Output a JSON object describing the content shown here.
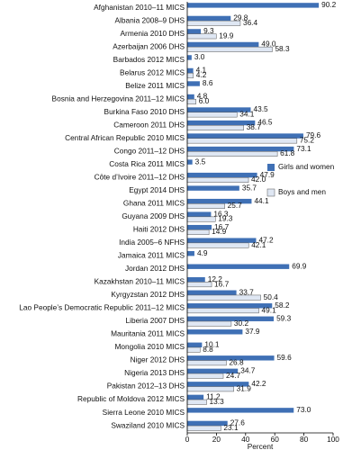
{
  "chart_data": {
    "type": "hbar",
    "xlabel": "Percent",
    "categories": [
      "Afghanistan 2010–11 MICS",
      "Albania 2008–9 DHS",
      "Armenia 2010 DHS",
      "Azerbaijan 2006 DHS",
      "Barbados 2012 MICS",
      "Belarus 2012 MICS",
      "Belize 2011 MICS",
      "Bosnia and Herzegovina 2011–12 MICS",
      "Burkina Faso 2010 DHS",
      "Cameroon 2011 DHS",
      "Central African Republic 2010 MICS",
      "Congo 2011–12 DHS",
      "Costa Rica 2011 MICS",
      "Côte d’Ivoire 2011–12 DHS",
      "Egypt 2014 DHS",
      "Ghana 2011 MICS",
      "Guyana 2009 DHS",
      "Haiti 2012 DHS",
      "India 2005–6 NFHS",
      "Jamaica 2011 MICS",
      "Jordan 2012 DHS",
      "Kazakhstan 2010–11 MICS",
      "Kyrgyzstan 2012 DHS",
      "Lao People’s Democratic Republic 2011–12 MICS",
      "Liberia 2007 DHS",
      "Mauritania 2011 MICS",
      "Mongolia 2010 MICS",
      "Niger 2012 DHS",
      "Nigeria 2013 DHS",
      "Pakistan 2012–13 DHS",
      "Republic of Moldova 2012 MICS",
      "Sierra Leone 2010 MICS",
      "Swaziland 2010 MICS"
    ],
    "series": [
      {
        "name": "Girls and women",
        "color": "#3f70b5",
        "values": [
          90.2,
          29.8,
          9.3,
          49,
          3,
          4.1,
          8.6,
          4.8,
          43.5,
          46.5,
          79.6,
          73.1,
          3.5,
          47.9,
          35.7,
          44.1,
          16.3,
          16.7,
          47.2,
          4.9,
          69.9,
          12.2,
          33.7,
          58.2,
          59.3,
          37.9,
          10.1,
          59.6,
          34.7,
          42.2,
          11.2,
          73,
          27.6
        ],
        "value_labels": [
          "90.2",
          "29.8",
          "9.3",
          "49.0",
          "3.0",
          "4.1",
          "8.6",
          "4.8",
          "43.5",
          "46.5",
          "79.6",
          "73.1",
          "3.5",
          "47.9",
          "35.7",
          "44.1",
          "16.3",
          "16.7",
          "47.2",
          "4.9",
          "69.9",
          "12.2",
          "33.7",
          "58.2",
          "59.3",
          "37.9",
          "10.1",
          "59.6",
          "34.7",
          "42.2",
          "11.2",
          "73.0",
          "27.6"
        ]
      },
      {
        "name": "Boys and men",
        "color": "#dfe7f3",
        "values": [
          null,
          36.4,
          19.9,
          58.3,
          null,
          4.2,
          null,
          6,
          34.1,
          38.7,
          75.2,
          61.8,
          null,
          42,
          null,
          25.7,
          19.3,
          14.9,
          42.1,
          null,
          null,
          16.7,
          50.4,
          49.1,
          30.2,
          null,
          8.8,
          26.8,
          24.7,
          31.9,
          13.3,
          null,
          23.1
        ],
        "value_labels": [
          null,
          "36.4",
          "19.9",
          "58.3",
          null,
          "4.2",
          null,
          "6.0",
          "34.1",
          "38.7",
          "75.2",
          "61.8",
          null,
          "42.0",
          null,
          "25.7",
          "19.3",
          "14.9",
          "42.1",
          null,
          null,
          "16.7",
          "50.4",
          "49.1",
          "30.2",
          null,
          "8.8",
          "26.8",
          "24.7",
          "31.9",
          "13.3",
          null,
          "23.1"
        ]
      }
    ],
    "xlim": [
      0,
      100
    ],
    "xticks": [
      0,
      20,
      40,
      60,
      80,
      100
    ]
  }
}
